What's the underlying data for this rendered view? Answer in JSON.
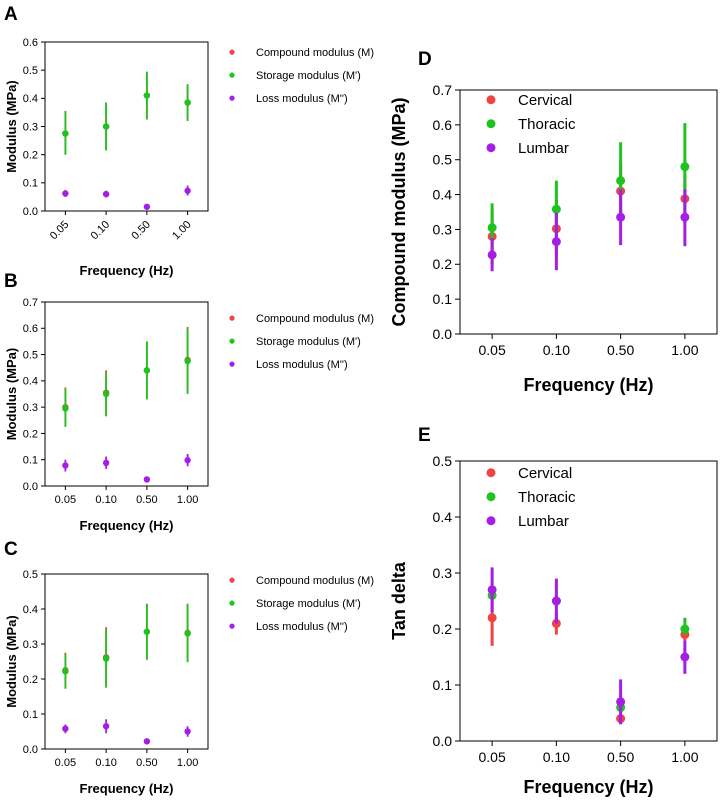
{
  "colors": {
    "cervical": "#ef4444",
    "thoracic": "#1ec41e",
    "lumbar": "#a41ee6"
  },
  "chart_data": [
    {
      "panel": "A",
      "type": "scatter",
      "categories": [
        "0.05",
        "0.10",
        "0.50",
        "1.00"
      ],
      "xlabel": "Frequency (Hz)",
      "ylabel": "Modulus (MPa)",
      "ylim": [
        0,
        0.6
      ],
      "yticks": [
        "0.0",
        "0.1",
        "0.2",
        "0.3",
        "0.4",
        "0.5",
        "0.6"
      ],
      "legend_position": "top-right",
      "series": [
        {
          "name": "Compound modulus (M)",
          "color": "#ef4444",
          "values": [
            0.275,
            0.3,
            0.41,
            0.385
          ],
          "err_low": [
            0.2,
            0.215,
            0.325,
            0.32
          ],
          "err_high": [
            0.355,
            0.385,
            0.49,
            0.45
          ]
        },
        {
          "name": "Storage modulus (M')",
          "color": "#1ec41e",
          "values": [
            0.275,
            0.3,
            0.41,
            0.385
          ],
          "err_low": [
            0.2,
            0.215,
            0.325,
            0.32
          ],
          "err_high": [
            0.355,
            0.385,
            0.495,
            0.45
          ]
        },
        {
          "name": "Loss modulus (M'')",
          "color": "#a41ee6",
          "values": [
            0.062,
            0.06,
            0.015,
            0.072
          ],
          "err_low": [
            0.05,
            0.048,
            0.01,
            0.055
          ],
          "err_high": [
            0.075,
            0.072,
            0.02,
            0.09
          ]
        }
      ]
    },
    {
      "panel": "B",
      "type": "scatter",
      "categories": [
        "0.05",
        "0.10",
        "0.50",
        "1.00"
      ],
      "xlabel": "Frequency (Hz)",
      "ylabel": "Modulus (MPa)",
      "ylim": [
        0,
        0.7
      ],
      "yticks": [
        "0.0",
        "0.1",
        "0.2",
        "0.3",
        "0.4",
        "0.5",
        "0.6",
        "0.7"
      ],
      "legend_position": "top-right",
      "series": [
        {
          "name": "Compound modulus (M)",
          "color": "#ef4444",
          "values": [
            0.3,
            0.355,
            0.44,
            0.48
          ],
          "err_low": [
            0.23,
            0.27,
            0.33,
            0.36
          ],
          "err_high": [
            0.375,
            0.44,
            0.55,
            0.605
          ]
        },
        {
          "name": "Storage modulus (M')",
          "color": "#1ec41e",
          "values": [
            0.295,
            0.35,
            0.44,
            0.475
          ],
          "err_low": [
            0.225,
            0.265,
            0.33,
            0.35
          ],
          "err_high": [
            0.37,
            0.43,
            0.55,
            0.6
          ]
        },
        {
          "name": "Loss modulus (M'')",
          "color": "#a41ee6",
          "values": [
            0.078,
            0.088,
            0.025,
            0.098
          ],
          "err_low": [
            0.055,
            0.065,
            0.02,
            0.075
          ],
          "err_high": [
            0.1,
            0.112,
            0.03,
            0.122
          ]
        }
      ]
    },
    {
      "panel": "C",
      "type": "scatter",
      "categories": [
        "0.05",
        "0.10",
        "0.50",
        "1.00"
      ],
      "xlabel": "Frequency (Hz)",
      "ylabel": "Modulus (MPa)",
      "ylim": [
        0,
        0.5
      ],
      "yticks": [
        "0.0",
        "0.1",
        "0.2",
        "0.3",
        "0.4",
        "0.5"
      ],
      "legend_position": "top-right",
      "series": [
        {
          "name": "Compound modulus (M)",
          "color": "#ef4444",
          "values": [
            0.225,
            0.262,
            0.335,
            0.332
          ],
          "err_low": [
            0.175,
            0.178,
            0.255,
            0.25
          ],
          "err_high": [
            0.275,
            0.348,
            0.415,
            0.415
          ]
        },
        {
          "name": "Storage modulus (M')",
          "color": "#1ec41e",
          "values": [
            0.222,
            0.258,
            0.335,
            0.33
          ],
          "err_low": [
            0.172,
            0.175,
            0.255,
            0.248
          ],
          "err_high": [
            0.27,
            0.342,
            0.415,
            0.415
          ]
        },
        {
          "name": "Loss modulus (M'')",
          "color": "#a41ee6",
          "values": [
            0.058,
            0.065,
            0.022,
            0.05
          ],
          "err_low": [
            0.045,
            0.045,
            0.015,
            0.035
          ],
          "err_high": [
            0.07,
            0.085,
            0.03,
            0.065
          ]
        }
      ]
    },
    {
      "panel": "D",
      "type": "scatter",
      "categories": [
        "0.05",
        "0.10",
        "0.50",
        "1.00"
      ],
      "xlabel": "Frequency (Hz)",
      "ylabel": "Compound modulus (MPa)",
      "ylim": [
        0,
        0.7
      ],
      "yticks": [
        "0.0",
        "0.1",
        "0.2",
        "0.3",
        "0.4",
        "0.5",
        "0.6",
        "0.7"
      ],
      "legend_position": "top-left",
      "series": [
        {
          "name": "Cervical",
          "color": "#ef4444",
          "values": [
            0.28,
            0.302,
            0.41,
            0.388
          ],
          "err_low": [
            0.2,
            0.22,
            0.33,
            0.32
          ],
          "err_high": [
            0.355,
            0.385,
            0.49,
            0.455
          ]
        },
        {
          "name": "Thoracic",
          "color": "#1ec41e",
          "values": [
            0.305,
            0.358,
            0.44,
            0.48
          ],
          "err_low": [
            0.235,
            0.275,
            0.33,
            0.355
          ],
          "err_high": [
            0.375,
            0.44,
            0.55,
            0.605
          ]
        },
        {
          "name": "Lumbar",
          "color": "#a41ee6",
          "values": [
            0.227,
            0.265,
            0.335,
            0.335
          ],
          "err_low": [
            0.18,
            0.183,
            0.255,
            0.252
          ],
          "err_high": [
            0.275,
            0.348,
            0.415,
            0.415
          ]
        }
      ]
    },
    {
      "panel": "E",
      "type": "scatter",
      "categories": [
        "0.05",
        "0.10",
        "0.50",
        "1.00"
      ],
      "xlabel": "Frequency (Hz)",
      "ylabel": "Tan delta",
      "ylim": [
        0,
        0.5
      ],
      "yticks": [
        "0.0",
        "0.1",
        "0.2",
        "0.3",
        "0.4",
        "0.5"
      ],
      "legend_position": "top-left",
      "series": [
        {
          "name": "Cervical",
          "color": "#ef4444",
          "values": [
            0.22,
            0.21,
            0.04,
            0.19
          ],
          "err_low": [
            0.17,
            0.19,
            0.03,
            0.18
          ],
          "err_high": [
            0.27,
            0.23,
            0.05,
            0.2
          ]
        },
        {
          "name": "Thoracic",
          "color": "#1ec41e",
          "values": [
            0.26,
            0.25,
            0.06,
            0.2
          ],
          "err_low": [
            0.25,
            0.24,
            0.05,
            0.19
          ],
          "err_high": [
            0.27,
            0.26,
            0.07,
            0.22
          ]
        },
        {
          "name": "Lumbar",
          "color": "#a41ee6",
          "values": [
            0.27,
            0.25,
            0.07,
            0.15
          ],
          "err_low": [
            0.23,
            0.21,
            0.03,
            0.12
          ],
          "err_high": [
            0.31,
            0.29,
            0.11,
            0.18
          ]
        }
      ]
    }
  ]
}
